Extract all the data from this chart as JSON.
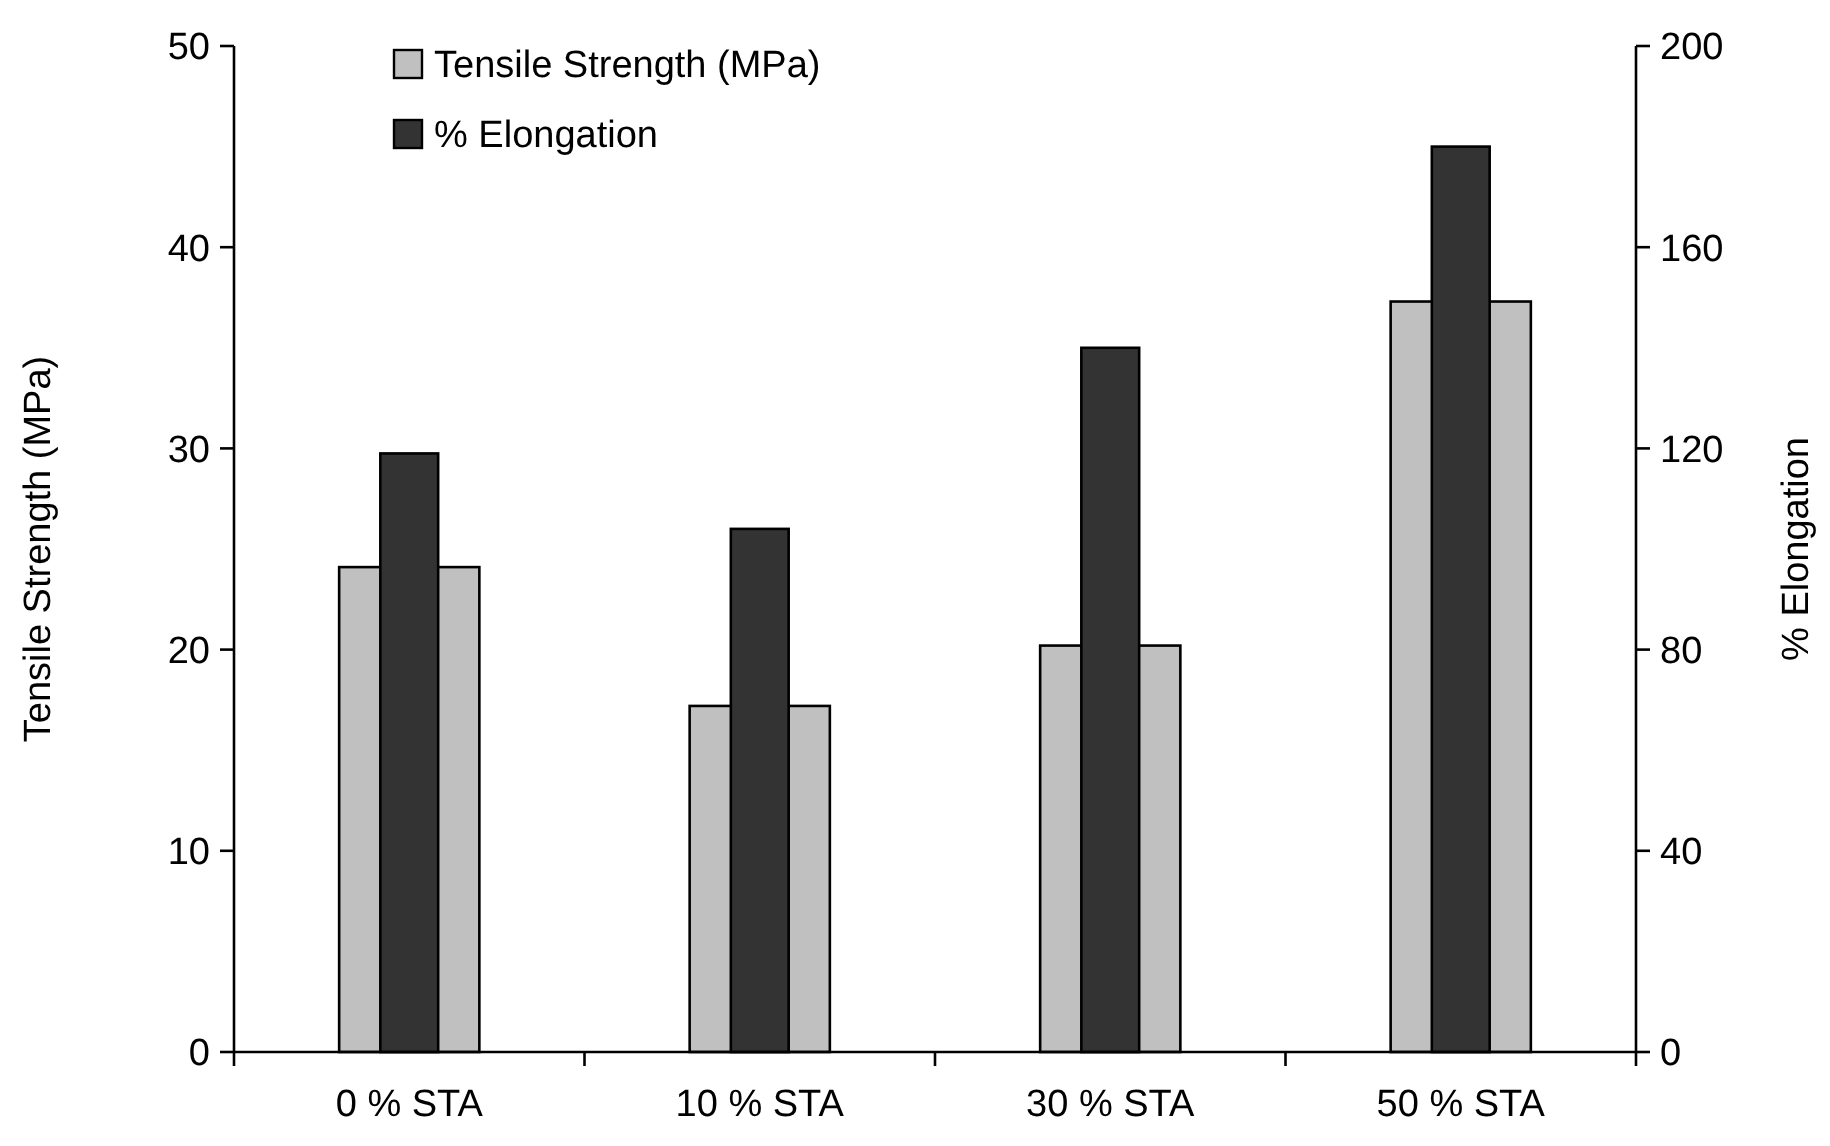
{
  "chart_data": {
    "type": "bar",
    "categories": [
      "0 % STA",
      "10 % STA",
      "30 % STA",
      "50 % STA"
    ],
    "series": [
      {
        "name": "Tensile Strength (MPa)",
        "color": "#c0c0c0",
        "values": [
          24.1,
          17.2,
          20.2,
          37.3
        ]
      },
      {
        "name": "% Elongation",
        "color": "#333333",
        "values": [
          119,
          104,
          140,
          180
        ],
        "axis": "y2"
      }
    ],
    "ylabel": "Tensile Strength (MPa)",
    "y2label": "% Elongation",
    "ylim": [
      0,
      50
    ],
    "yticks": [
      0,
      10,
      20,
      30,
      40,
      50
    ],
    "y2lim": [
      0,
      200
    ],
    "y2ticks": [
      0,
      40,
      80,
      120,
      160,
      200
    ],
    "legend": "top left",
    "grid": false
  }
}
